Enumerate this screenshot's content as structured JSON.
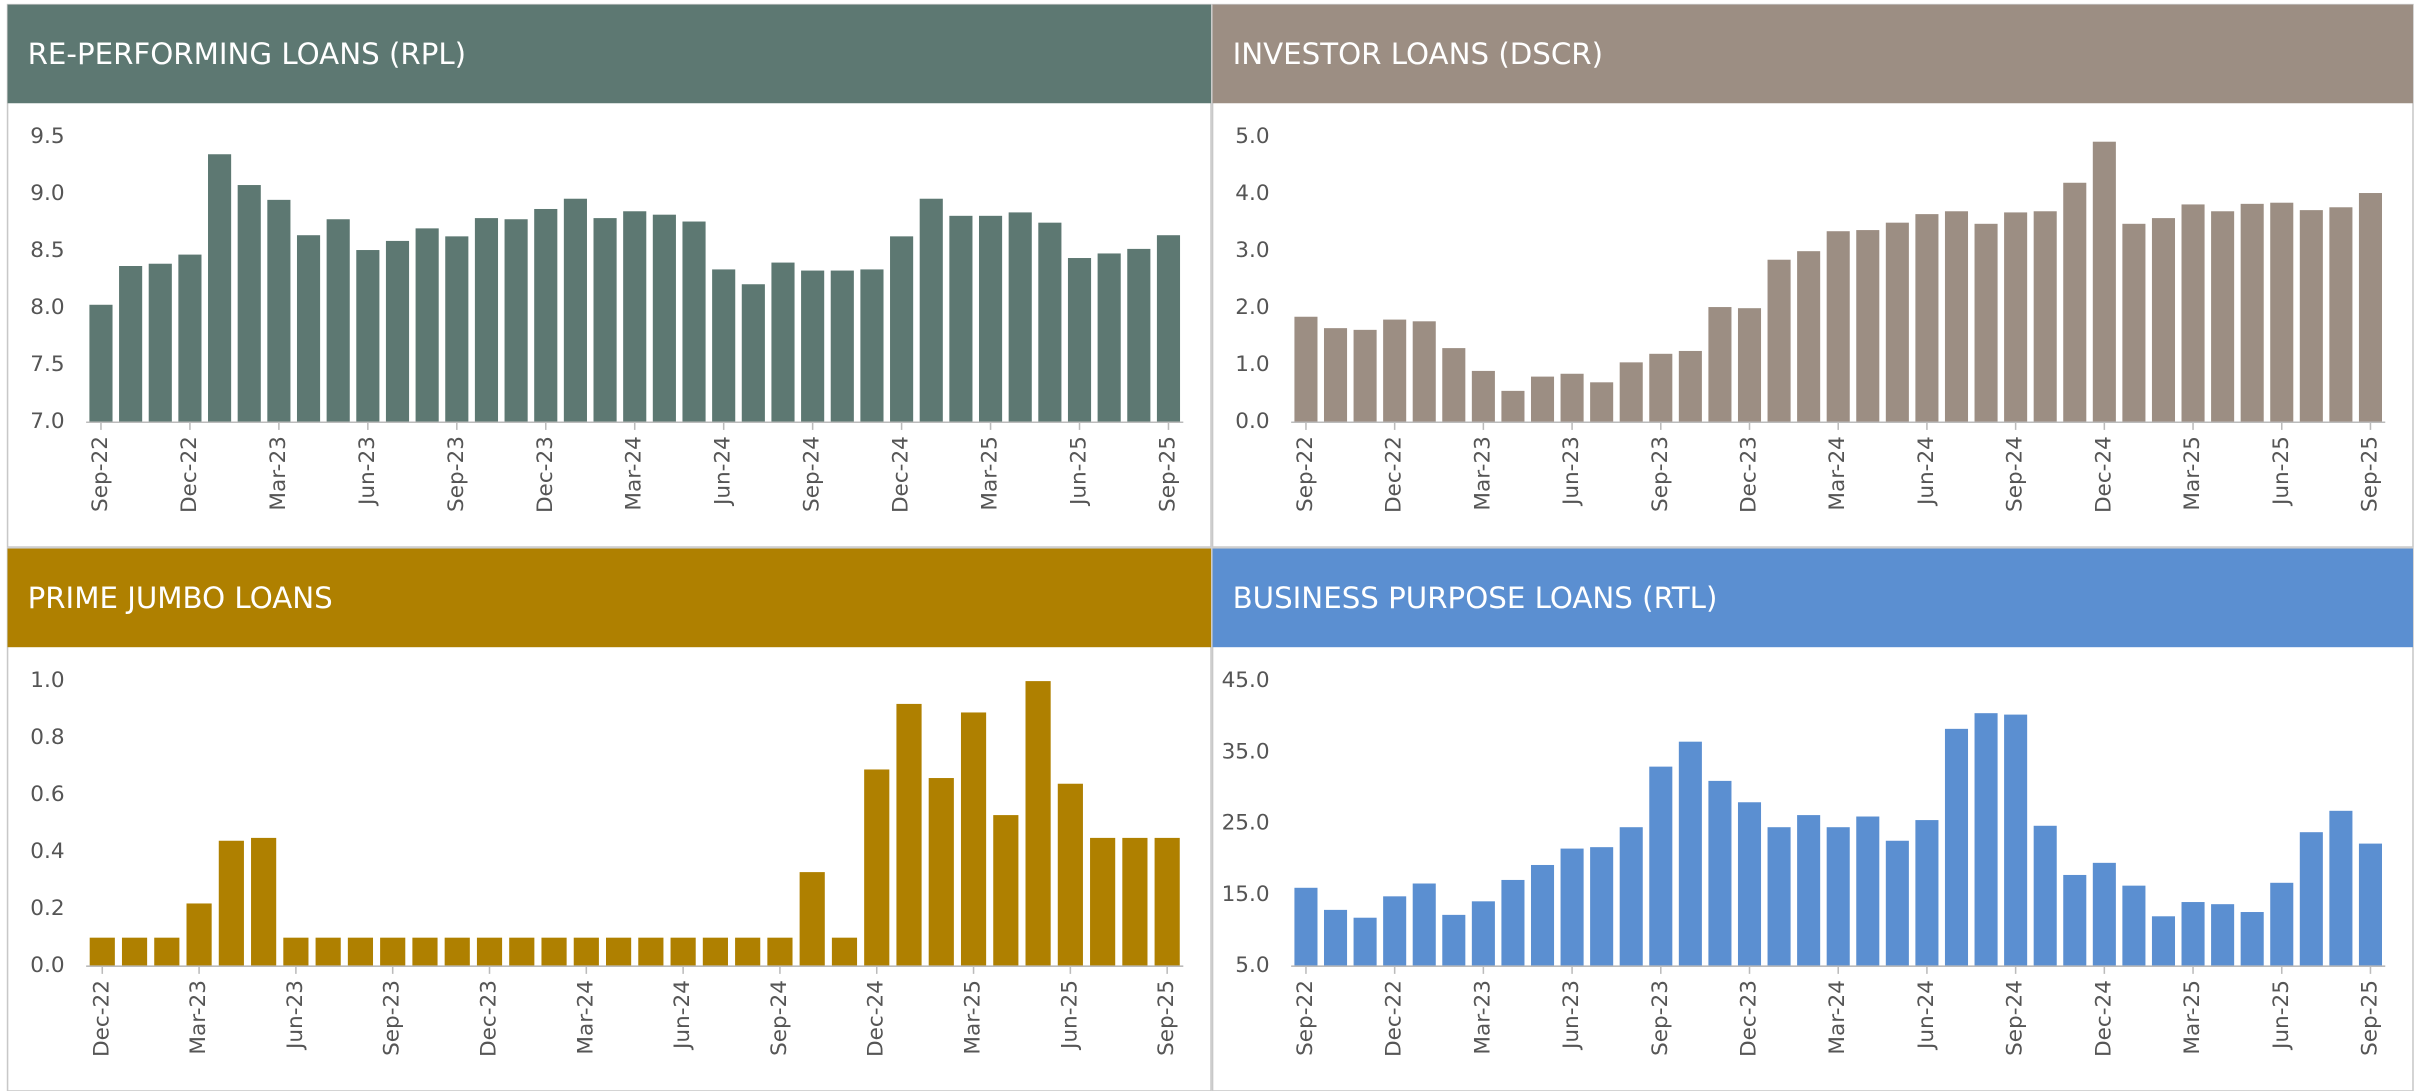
{
  "chart_data": [
    {
      "type": "bar",
      "title": "RE-PERFORMING LOANS (RPL)",
      "color": "#5d7872",
      "categories": [
        "Sep-22",
        null,
        null,
        "Dec-22",
        null,
        null,
        "Mar-23",
        null,
        null,
        "Jun-23",
        null,
        null,
        "Sep-23",
        null,
        null,
        "Dec-23",
        null,
        null,
        "Mar-24",
        null,
        null,
        "Jun-24",
        null,
        null,
        "Sep-24",
        null,
        null,
        "Dec-24",
        null,
        null,
        "Mar-25",
        null,
        null,
        "Jun-25",
        null,
        null,
        "Sep-25"
      ],
      "values": [
        8.03,
        8.37,
        8.39,
        8.47,
        9.35,
        9.08,
        8.95,
        8.64,
        8.78,
        8.51,
        8.59,
        8.7,
        8.63,
        8.79,
        8.78,
        8.87,
        8.96,
        8.79,
        8.85,
        8.82,
        8.76,
        8.34,
        8.21,
        8.4,
        8.33,
        8.33,
        8.34,
        8.63,
        8.96,
        8.81,
        8.81,
        8.84,
        8.75,
        8.44,
        8.48,
        8.52,
        8.64
      ],
      "ylim": [
        7,
        9.5
      ],
      "yticks": [
        {
          "value": 7,
          "label": "7.0"
        },
        7.5,
        {
          "value": 8,
          "label": "8.0"
        },
        8.5,
        {
          "value": 9,
          "label": "9.0"
        },
        9.5
      ]
    },
    {
      "type": "bar",
      "title": "INVESTOR LOANS (DSCR)",
      "color": "#9c8e83",
      "categories": [
        "Sep-22",
        null,
        null,
        "Dec-22",
        null,
        null,
        "Mar-23",
        null,
        null,
        "Jun-23",
        null,
        null,
        "Sep-23",
        null,
        null,
        "Dec-23",
        null,
        null,
        "Mar-24",
        null,
        null,
        "Jun-24",
        null,
        null,
        "Sep-24",
        null,
        null,
        "Dec-24",
        null,
        null,
        "Mar-25",
        null,
        null,
        "Jun-25",
        null,
        null,
        "Sep-25"
      ],
      "values": [
        1.85,
        1.65,
        1.62,
        1.8,
        1.77,
        1.3,
        0.9,
        0.55,
        0.8,
        0.85,
        0.7,
        1.05,
        1.2,
        1.25,
        2.02,
        2.0,
        2.85,
        3.0,
        3.35,
        3.37,
        3.5,
        3.65,
        3.7,
        3.48,
        3.68,
        3.7,
        4.2,
        4.92,
        3.48,
        3.58,
        3.82,
        3.7,
        3.83,
        3.85,
        3.72,
        3.77,
        4.02
      ],
      "ylim": [
        0,
        5
      ],
      "yticks": [
        {
          "value": 0,
          "label": "0.0"
        },
        {
          "value": 1,
          "label": "1.0"
        },
        {
          "value": 2,
          "label": "2.0"
        },
        {
          "value": 3,
          "label": "3.0"
        },
        {
          "value": 4,
          "label": "4.0"
        },
        {
          "value": 5,
          "label": "5.0"
        }
      ]
    },
    {
      "type": "bar",
      "title": "PRIME JUMBO LOANS",
      "color": "#af8000",
      "categories": [
        "Dec-22",
        null,
        null,
        "Mar-23",
        null,
        null,
        "Jun-23",
        null,
        null,
        "Sep-23",
        null,
        null,
        "Dec-23",
        null,
        null,
        "Mar-24",
        null,
        null,
        "Jun-24",
        null,
        null,
        "Sep-24",
        null,
        null,
        "Dec-24",
        null,
        null,
        "Mar-25",
        null,
        null,
        "Jun-25",
        null,
        null,
        "Sep-25"
      ],
      "values": [
        0.1,
        0.1,
        0.1,
        0.22,
        0.44,
        0.45,
        0.1,
        0.1,
        0.1,
        0.1,
        0.1,
        0.1,
        0.1,
        0.1,
        0.1,
        0.1,
        0.1,
        0.1,
        0.1,
        0.1,
        0.1,
        0.1,
        0.33,
        0.1,
        0.69,
        0.92,
        0.66,
        0.89,
        0.53,
        1.0,
        0.64,
        0.45,
        0.45,
        0.45
      ],
      "ylim": [
        0,
        1
      ],
      "yticks": [
        {
          "value": 0,
          "label": "0.0"
        },
        0.2,
        0.4,
        0.6,
        0.8,
        {
          "value": 1,
          "label": "1.0"
        }
      ]
    },
    {
      "type": "bar",
      "title": "BUSINESS PURPOSE LOANS (RTL)",
      "color": "#5b8fd1",
      "categories": [
        "Sep-22",
        null,
        null,
        "Dec-22",
        null,
        null,
        "Mar-23",
        null,
        null,
        "Jun-23",
        null,
        null,
        "Sep-23",
        null,
        null,
        "Dec-23",
        null,
        null,
        "Mar-24",
        null,
        null,
        "Jun-24",
        null,
        null,
        "Sep-24",
        null,
        null,
        "Dec-24",
        null,
        null,
        "Mar-25",
        null,
        null,
        "Jun-25",
        null,
        null,
        "Sep-25"
      ],
      "values": [
        16.0,
        12.9,
        11.8,
        14.8,
        16.6,
        12.2,
        14.1,
        17.1,
        19.2,
        21.5,
        21.7,
        24.5,
        33.0,
        36.5,
        31.0,
        28.0,
        24.5,
        26.2,
        24.5,
        26.0,
        22.6,
        25.5,
        38.3,
        40.5,
        40.3,
        24.7,
        17.8,
        19.5,
        16.3,
        12.0,
        14.0,
        13.7,
        12.6,
        16.7,
        23.8,
        26.8,
        22.2
      ],
      "ylim": [
        5,
        45
      ],
      "yticks": [
        {
          "value": 5,
          "label": "5.0"
        },
        {
          "value": 15,
          "label": "15.0"
        },
        {
          "value": 25,
          "label": "25.0"
        },
        {
          "value": 35,
          "label": "35.0"
        },
        {
          "value": 45,
          "label": "45.0"
        }
      ]
    }
  ]
}
